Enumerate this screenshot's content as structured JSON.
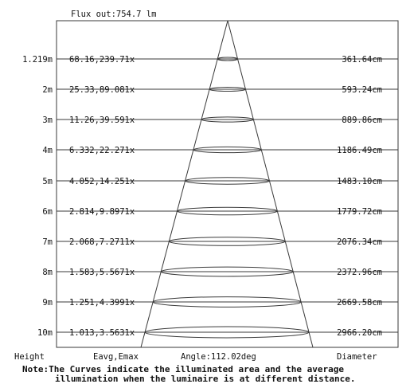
{
  "flux_label": "Flux out:754.7 lm",
  "rows": [
    {
      "height": "1.219m",
      "eavg_emax": "68.16,239.71x",
      "diameter": "361.64cm"
    },
    {
      "height": "2m",
      "eavg_emax": "25.33,89.081x",
      "diameter": "593.24cm"
    },
    {
      "height": "3m",
      "eavg_emax": "11.26,39.591x",
      "diameter": "889.86cm"
    },
    {
      "height": "4m",
      "eavg_emax": "6.332,22.271x",
      "diameter": "1186.49cm"
    },
    {
      "height": "5m",
      "eavg_emax": "4.052,14.251x",
      "diameter": "1483.10cm"
    },
    {
      "height": "6m",
      "eavg_emax": "2.814,9.8971x",
      "diameter": "1779.72cm"
    },
    {
      "height": "7m",
      "eavg_emax": "2.068,7.2711x",
      "diameter": "2076.34cm"
    },
    {
      "height": "8m",
      "eavg_emax": "1.583,5.5671x",
      "diameter": "2372.96cm"
    },
    {
      "height": "9m",
      "eavg_emax": "1.251,4.3991x",
      "diameter": "2669.58cm"
    },
    {
      "height": "10m",
      "eavg_emax": "1.013,3.5631x",
      "diameter": "2966.20cm"
    }
  ],
  "footer": {
    "height_label": "Height",
    "eavg_label": "Eavg,Emax",
    "angle_label": "Angle:112.02deg",
    "diameter_label": "Diameter"
  },
  "note": {
    "label": "Note:",
    "line1": "The Curves indicate the illuminated area and the average",
    "line2": "illumination when the luminaire is at different distance."
  },
  "colors": {
    "line": "#3a3a3a",
    "text": "#111111",
    "background": "#ffffff"
  }
}
